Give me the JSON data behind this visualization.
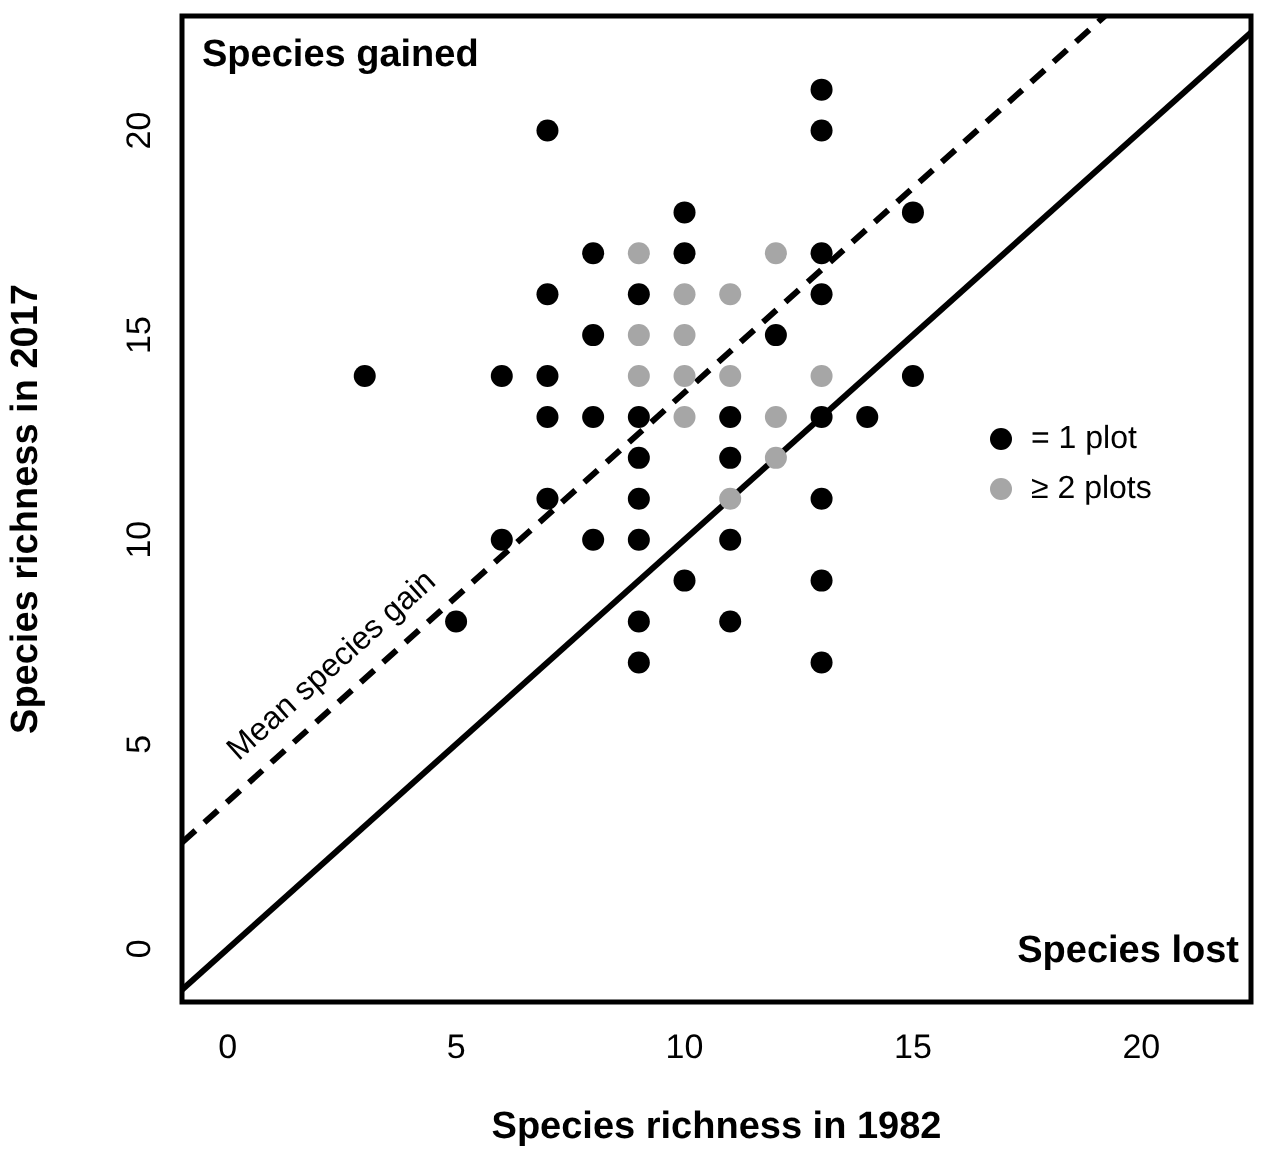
{
  "chart_data": {
    "type": "scatter",
    "xlabel": "Species richness in 1982",
    "ylabel": "Species richness in 2017",
    "xlim": [
      -1,
      22.4
    ],
    "ylim": [
      -1.3,
      22.8
    ],
    "xticks": [
      0,
      5,
      10,
      15,
      20
    ],
    "yticks": [
      0,
      5,
      10,
      15,
      20
    ],
    "grid": false,
    "legend": "right",
    "marker": "circle",
    "series": [
      {
        "name": "= 1 plot",
        "color": "#000000",
        "x": [
          3,
          5,
          6,
          6,
          7,
          7,
          7,
          7,
          7,
          8,
          8,
          8,
          8,
          9,
          9,
          9,
          9,
          9,
          9,
          9,
          10,
          10,
          10,
          11,
          11,
          11,
          11,
          12,
          13,
          13,
          13,
          13,
          13,
          13,
          13,
          13,
          14,
          15,
          15
        ],
        "values": [
          14,
          8,
          14,
          10,
          20,
          16,
          14,
          13,
          11,
          17,
          15,
          13,
          10,
          16,
          13,
          12,
          11,
          10,
          8,
          7,
          18,
          17,
          9,
          13,
          12,
          10,
          8,
          15,
          21,
          20,
          17,
          16,
          13,
          11,
          9,
          7,
          13,
          18,
          14
        ]
      },
      {
        "name": "≥ 2 plots",
        "color": "#a6a6a6",
        "x": [
          9,
          9,
          9,
          10,
          10,
          10,
          10,
          11,
          11,
          11,
          12,
          12,
          12,
          13
        ],
        "values": [
          17,
          15,
          14,
          16,
          15,
          14,
          13,
          16,
          14,
          11,
          17,
          13,
          12,
          14
        ]
      },
      {
        "type": "line",
        "color": "#000000",
        "line_style": "solid",
        "marker": "none",
        "x": [
          -1,
          22.4
        ],
        "values": [
          -1,
          22.4
        ]
      },
      {
        "type": "line",
        "color": "#000000",
        "line_style": "dashed",
        "marker": "none",
        "x": [
          -1,
          19.2
        ],
        "values": [
          2.6,
          22.8
        ]
      }
    ],
    "annotations": [
      "Species gained",
      "Species lost",
      "Mean species gain"
    ]
  }
}
